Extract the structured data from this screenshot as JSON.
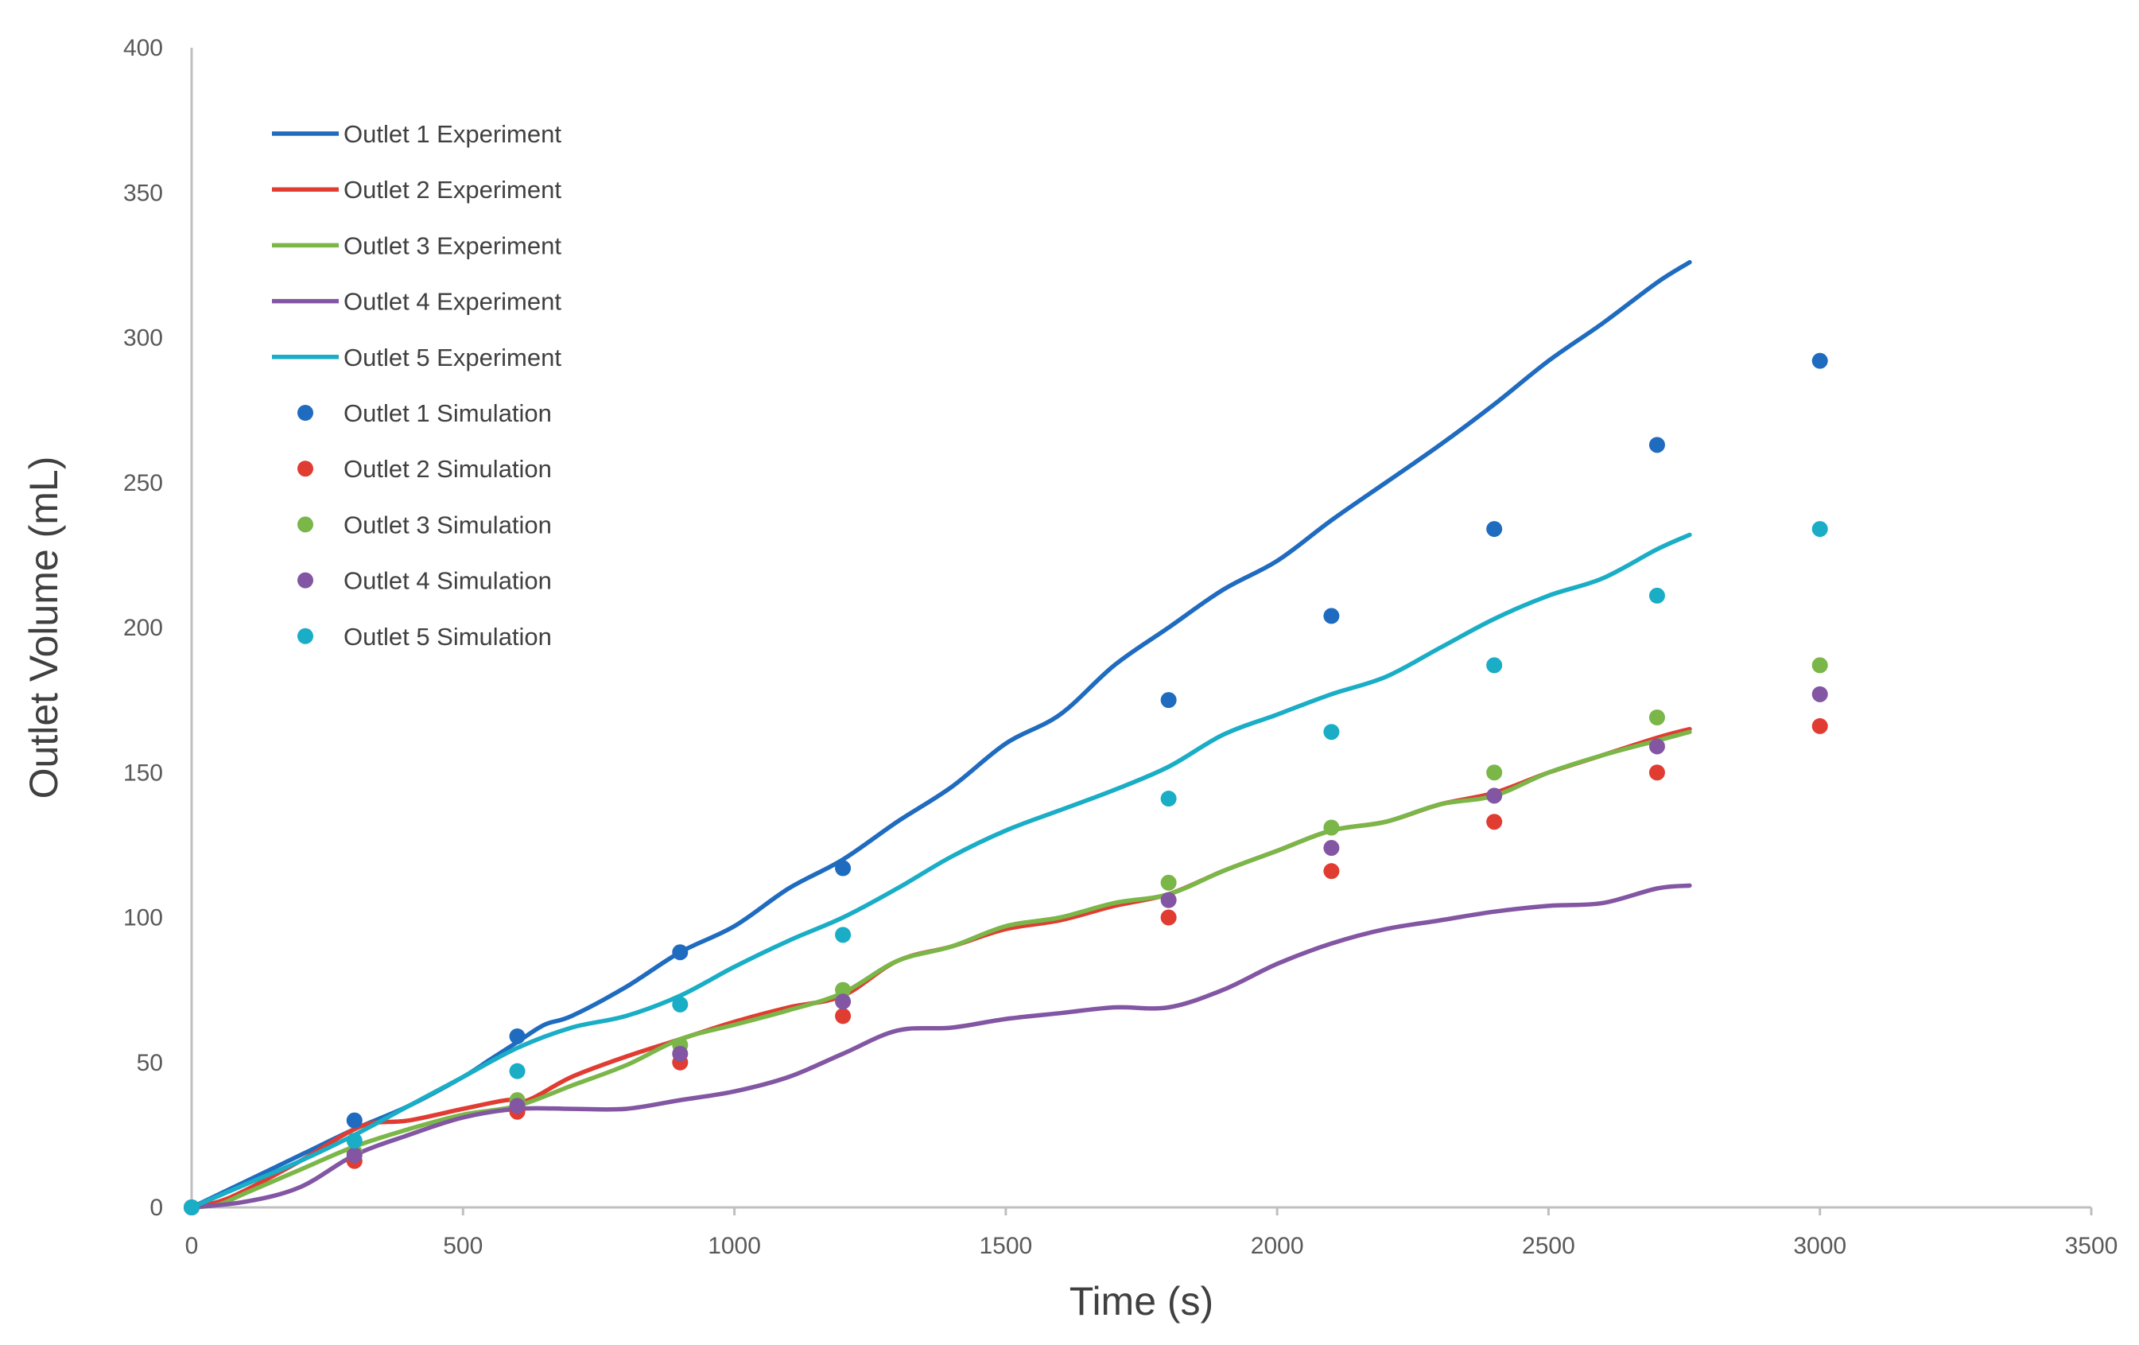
{
  "chart_data": {
    "type": "line",
    "title": "",
    "xlabel": "Time (s)",
    "ylabel": "Outlet Volume (mL)",
    "xlim": [
      0,
      3500
    ],
    "ylim": [
      0,
      400
    ],
    "xticks": [
      0,
      500,
      1000,
      1500,
      2000,
      2500,
      3000,
      3500
    ],
    "yticks": [
      0,
      50,
      100,
      150,
      200,
      250,
      300,
      350,
      400
    ],
    "grid": false,
    "legend_position": "top-left",
    "series": [
      {
        "name": "Outlet 1 Experiment",
        "kind": "line",
        "color": "#1f6bbf",
        "points": [
          [
            0,
            0
          ],
          [
            100,
            9
          ],
          [
            200,
            18
          ],
          [
            300,
            27
          ],
          [
            400,
            35
          ],
          [
            500,
            45
          ],
          [
            550,
            51
          ],
          [
            600,
            57
          ],
          [
            650,
            63
          ],
          [
            700,
            66
          ],
          [
            800,
            76
          ],
          [
            900,
            88
          ],
          [
            1000,
            97
          ],
          [
            1100,
            110
          ],
          [
            1200,
            120
          ],
          [
            1300,
            133
          ],
          [
            1400,
            145
          ],
          [
            1500,
            160
          ],
          [
            1600,
            170
          ],
          [
            1700,
            187
          ],
          [
            1800,
            200
          ],
          [
            1900,
            213
          ],
          [
            2000,
            223
          ],
          [
            2100,
            237
          ],
          [
            2200,
            250
          ],
          [
            2300,
            263
          ],
          [
            2400,
            277
          ],
          [
            2500,
            292
          ],
          [
            2600,
            305
          ],
          [
            2700,
            319
          ],
          [
            2760,
            326
          ]
        ]
      },
      {
        "name": "Outlet 2 Experiment",
        "kind": "line",
        "color": "#e03c31",
        "points": [
          [
            0,
            0
          ],
          [
            50,
            2
          ],
          [
            100,
            6
          ],
          [
            200,
            16
          ],
          [
            280,
            25
          ],
          [
            330,
            29
          ],
          [
            400,
            30
          ],
          [
            500,
            34
          ],
          [
            580,
            37
          ],
          [
            620,
            37
          ],
          [
            700,
            45
          ],
          [
            800,
            52
          ],
          [
            900,
            58
          ],
          [
            1000,
            64
          ],
          [
            1100,
            69
          ],
          [
            1200,
            73
          ],
          [
            1300,
            85
          ],
          [
            1400,
            90
          ],
          [
            1500,
            96
          ],
          [
            1600,
            99
          ],
          [
            1700,
            104
          ],
          [
            1800,
            108
          ],
          [
            1900,
            116
          ],
          [
            2000,
            123
          ],
          [
            2100,
            130
          ],
          [
            2200,
            133
          ],
          [
            2300,
            139
          ],
          [
            2400,
            143
          ],
          [
            2500,
            150
          ],
          [
            2600,
            156
          ],
          [
            2700,
            162
          ],
          [
            2760,
            165
          ]
        ]
      },
      {
        "name": "Outlet 3 Experiment",
        "kind": "line",
        "color": "#7ab648",
        "points": [
          [
            0,
            0
          ],
          [
            50,
            1
          ],
          [
            100,
            5
          ],
          [
            200,
            13
          ],
          [
            300,
            21
          ],
          [
            400,
            27
          ],
          [
            500,
            32
          ],
          [
            600,
            35
          ],
          [
            700,
            42
          ],
          [
            800,
            49
          ],
          [
            900,
            58
          ],
          [
            1000,
            63
          ],
          [
            1100,
            68
          ],
          [
            1200,
            74
          ],
          [
            1300,
            85
          ],
          [
            1400,
            90
          ],
          [
            1500,
            97
          ],
          [
            1600,
            100
          ],
          [
            1700,
            105
          ],
          [
            1800,
            108
          ],
          [
            1900,
            116
          ],
          [
            2000,
            123
          ],
          [
            2100,
            130
          ],
          [
            2200,
            133
          ],
          [
            2300,
            139
          ],
          [
            2400,
            142
          ],
          [
            2500,
            150
          ],
          [
            2600,
            156
          ],
          [
            2700,
            161
          ],
          [
            2760,
            164
          ]
        ]
      },
      {
        "name": "Outlet 4 Experiment",
        "kind": "line",
        "color": "#8256a3",
        "points": [
          [
            0,
            0
          ],
          [
            100,
            2
          ],
          [
            200,
            7
          ],
          [
            300,
            18
          ],
          [
            400,
            25
          ],
          [
            500,
            31
          ],
          [
            600,
            34
          ],
          [
            700,
            34
          ],
          [
            800,
            34
          ],
          [
            900,
            37
          ],
          [
            1000,
            40
          ],
          [
            1100,
            45
          ],
          [
            1200,
            53
          ],
          [
            1300,
            61
          ],
          [
            1400,
            62
          ],
          [
            1500,
            65
          ],
          [
            1600,
            67
          ],
          [
            1700,
            69
          ],
          [
            1800,
            69
          ],
          [
            1900,
            75
          ],
          [
            2000,
            84
          ],
          [
            2100,
            91
          ],
          [
            2200,
            96
          ],
          [
            2300,
            99
          ],
          [
            2400,
            102
          ],
          [
            2500,
            104
          ],
          [
            2600,
            105
          ],
          [
            2700,
            110
          ],
          [
            2760,
            111
          ]
        ]
      },
      {
        "name": "Outlet 5 Experiment",
        "kind": "line",
        "color": "#19adc6",
        "points": [
          [
            0,
            0
          ],
          [
            100,
            8
          ],
          [
            200,
            16
          ],
          [
            300,
            25
          ],
          [
            400,
            35
          ],
          [
            500,
            45
          ],
          [
            600,
            55
          ],
          [
            700,
            62
          ],
          [
            800,
            66
          ],
          [
            900,
            73
          ],
          [
            1000,
            83
          ],
          [
            1100,
            92
          ],
          [
            1200,
            100
          ],
          [
            1300,
            110
          ],
          [
            1400,
            121
          ],
          [
            1500,
            130
          ],
          [
            1600,
            137
          ],
          [
            1700,
            144
          ],
          [
            1800,
            152
          ],
          [
            1900,
            163
          ],
          [
            2000,
            170
          ],
          [
            2100,
            177
          ],
          [
            2200,
            183
          ],
          [
            2300,
            193
          ],
          [
            2400,
            203
          ],
          [
            2500,
            211
          ],
          [
            2600,
            217
          ],
          [
            2700,
            227
          ],
          [
            2760,
            232
          ]
        ]
      },
      {
        "name": "Outlet 1 Simulation",
        "kind": "scatter",
        "color": "#1f6bbf",
        "points": [
          [
            0,
            0
          ],
          [
            300,
            30
          ],
          [
            600,
            59
          ],
          [
            900,
            88
          ],
          [
            1200,
            117
          ],
          [
            1800,
            175
          ],
          [
            2100,
            204
          ],
          [
            2400,
            234
          ],
          [
            2700,
            263
          ],
          [
            3000,
            292
          ]
        ]
      },
      {
        "name": "Outlet 2 Simulation",
        "kind": "scatter",
        "color": "#e03c31",
        "points": [
          [
            0,
            0
          ],
          [
            300,
            16
          ],
          [
            600,
            33
          ],
          [
            900,
            50
          ],
          [
            1200,
            66
          ],
          [
            1800,
            100
          ],
          [
            2100,
            116
          ],
          [
            2400,
            133
          ],
          [
            2700,
            150
          ],
          [
            3000,
            166
          ]
        ]
      },
      {
        "name": "Outlet 3 Simulation",
        "kind": "scatter",
        "color": "#7ab648",
        "points": [
          [
            0,
            0
          ],
          [
            300,
            19
          ],
          [
            600,
            37
          ],
          [
            900,
            56
          ],
          [
            1200,
            75
          ],
          [
            1800,
            112
          ],
          [
            2100,
            131
          ],
          [
            2400,
            150
          ],
          [
            2700,
            169
          ],
          [
            3000,
            187
          ]
        ]
      },
      {
        "name": "Outlet 4 Simulation",
        "kind": "scatter",
        "color": "#8256a3",
        "points": [
          [
            0,
            0
          ],
          [
            300,
            18
          ],
          [
            600,
            35
          ],
          [
            900,
            53
          ],
          [
            1200,
            71
          ],
          [
            1800,
            106
          ],
          [
            2100,
            124
          ],
          [
            2400,
            142
          ],
          [
            2700,
            159
          ],
          [
            3000,
            177
          ]
        ]
      },
      {
        "name": "Outlet 5 Simulation",
        "kind": "scatter",
        "color": "#19adc6",
        "points": [
          [
            0,
            0
          ],
          [
            300,
            23
          ],
          [
            600,
            47
          ],
          [
            900,
            70
          ],
          [
            1200,
            94
          ],
          [
            1800,
            141
          ],
          [
            2100,
            164
          ],
          [
            2400,
            187
          ],
          [
            2700,
            211
          ],
          [
            3000,
            234
          ]
        ]
      }
    ]
  }
}
